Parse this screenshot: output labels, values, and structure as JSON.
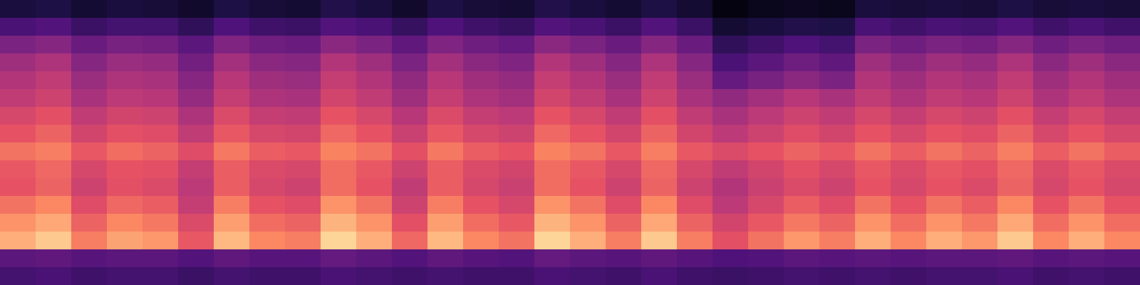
{
  "chart_data": {
    "type": "heatmap",
    "tick_labels": false,
    "zlim": [
      10,
      95
    ],
    "z": [
      [
        29,
        30,
        28,
        29,
        29,
        27,
        29,
        28,
        28,
        30,
        29,
        28,
        29,
        28,
        28,
        30,
        29,
        28,
        30,
        28,
        27,
        28,
        29,
        28,
        29,
        28,
        29,
        29,
        30,
        28,
        29,
        28
      ],
      [
        34,
        35,
        33,
        34,
        34,
        32,
        35,
        33,
        33,
        36,
        34,
        32,
        35,
        33,
        32,
        36,
        34,
        33,
        35,
        33,
        31,
        32,
        34,
        33,
        34,
        33,
        34,
        34,
        35,
        33,
        34,
        33
      ],
      [
        81,
        86,
        72,
        79,
        77,
        65,
        83,
        74,
        72,
        88,
        81,
        68,
        83,
        74,
        70,
        88,
        81,
        72,
        86,
        72,
        63,
        70,
        77,
        72,
        81,
        74,
        81,
        77,
        86,
        74,
        81,
        74
      ],
      [
        76,
        80,
        67,
        74,
        71,
        61,
        78,
        69,
        67,
        82,
        76,
        63,
        78,
        69,
        65,
        82,
        76,
        67,
        80,
        67,
        59,
        65,
        71,
        67,
        76,
        69,
        76,
        71,
        80,
        69,
        76,
        69
      ],
      [
        70,
        74,
        62,
        68,
        66,
        56,
        72,
        64,
        62,
        76,
        70,
        58,
        72,
        64,
        60,
        76,
        70,
        62,
        74,
        62,
        54,
        60,
        66,
        62,
        70,
        64,
        70,
        66,
        74,
        64,
        70,
        64
      ],
      [
        64,
        67,
        58,
        63,
        61,
        54,
        66,
        60,
        58,
        69,
        64,
        55,
        66,
        60,
        57,
        69,
        64,
        58,
        67,
        58,
        52,
        57,
        61,
        58,
        64,
        60,
        64,
        61,
        67,
        60,
        64,
        60
      ],
      [
        65,
        68,
        60,
        64,
        63,
        56,
        66,
        61,
        60,
        69,
        65,
        58,
        66,
        61,
        59,
        69,
        65,
        60,
        68,
        60,
        55,
        59,
        63,
        60,
        65,
        61,
        65,
        63,
        68,
        61,
        65,
        61
      ],
      [
        70,
        72,
        65,
        69,
        67,
        62,
        71,
        66,
        65,
        73,
        70,
        63,
        71,
        66,
        64,
        73,
        70,
        65,
        72,
        65,
        61,
        64,
        67,
        65,
        70,
        66,
        70,
        67,
        72,
        66,
        70,
        66
      ],
      [
        64,
        67,
        59,
        63,
        62,
        55,
        65,
        60,
        59,
        68,
        64,
        57,
        65,
        60,
        58,
        68,
        64,
        59,
        67,
        59,
        54,
        58,
        62,
        59,
        64,
        60,
        64,
        62,
        67,
        60,
        64,
        60
      ],
      [
        60,
        63,
        55,
        59,
        58,
        51,
        61,
        56,
        55,
        64,
        60,
        53,
        61,
        56,
        54,
        64,
        60,
        55,
        63,
        55,
        50,
        54,
        58,
        55,
        60,
        56,
        60,
        58,
        63,
        56,
        60,
        56
      ],
      [
        55,
        58,
        50,
        54,
        53,
        46,
        56,
        51,
        50,
        59,
        55,
        48,
        56,
        51,
        49,
        59,
        55,
        50,
        58,
        50,
        45,
        49,
        53,
        50,
        55,
        51,
        55,
        53,
        58,
        51,
        55,
        51
      ],
      [
        52,
        55,
        47,
        51,
        50,
        43,
        53,
        48,
        47,
        56,
        52,
        45,
        53,
        48,
        46,
        56,
        52,
        47,
        55,
        47,
        36,
        40,
        44,
        41,
        52,
        48,
        52,
        50,
        55,
        48,
        52,
        48
      ],
      [
        48,
        51,
        43,
        47,
        46,
        39,
        49,
        44,
        43,
        52,
        48,
        41,
        49,
        44,
        42,
        52,
        48,
        43,
        51,
        43,
        30,
        34,
        38,
        35,
        48,
        44,
        48,
        46,
        51,
        44,
        48,
        44
      ],
      [
        41,
        43,
        37,
        40,
        39,
        34,
        42,
        38,
        37,
        44,
        41,
        35,
        42,
        38,
        36,
        44,
        41,
        37,
        43,
        37,
        25,
        28,
        31,
        29,
        41,
        38,
        41,
        39,
        43,
        38,
        41,
        38
      ],
      [
        30,
        32,
        27,
        29,
        29,
        25,
        31,
        28,
        27,
        32,
        30,
        26,
        31,
        28,
        26,
        32,
        30,
        27,
        32,
        27,
        18,
        20,
        22,
        21,
        30,
        28,
        30,
        29,
        32,
        28,
        30,
        28
      ],
      [
        20,
        21,
        18,
        20,
        19,
        17,
        21,
        19,
        18,
        22,
        20,
        17,
        21,
        19,
        18,
        22,
        20,
        18,
        21,
        18,
        12,
        14,
        15,
        14,
        20,
        19,
        20,
        19,
        21,
        19,
        20,
        19
      ]
    ]
  }
}
